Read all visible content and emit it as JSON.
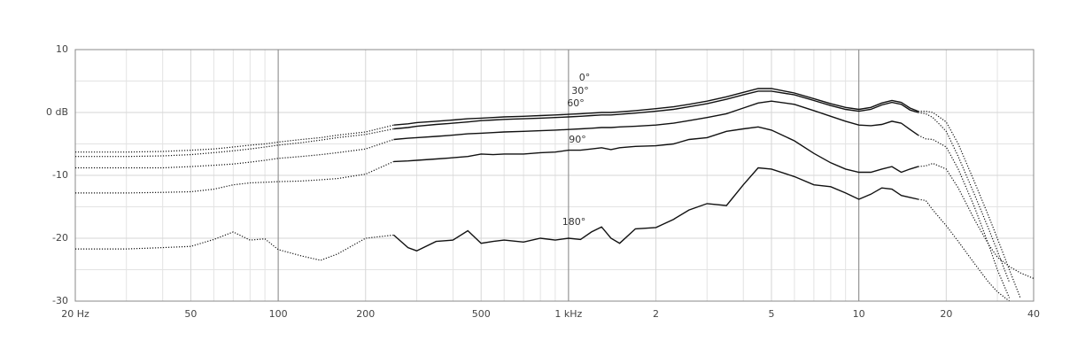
{
  "chart_data": {
    "type": "line",
    "x": [
      20,
      25,
      30,
      40,
      50,
      60,
      70,
      80,
      90,
      100,
      120,
      140,
      160,
      200,
      250,
      280,
      300,
      350,
      400,
      450,
      500,
      550,
      600,
      700,
      800,
      900,
      1000,
      1100,
      1200,
      1300,
      1400,
      1500,
      1700,
      2000,
      2300,
      2600,
      3000,
      3500,
      4000,
      4500,
      5000,
      6000,
      7000,
      8000,
      9000,
      10000,
      11000,
      12000,
      13000,
      14000,
      15000,
      16000,
      17000,
      18000,
      20000,
      22000,
      25000,
      28000,
      30000,
      33000,
      36000,
      40000
    ],
    "series": [
      {
        "name": "0°",
        "color": "#111111",
        "values": [
          -6.3,
          -6.3,
          -6.3,
          -6.2,
          -6.0,
          -5.8,
          -5.5,
          -5.2,
          -5.0,
          -4.7,
          -4.3,
          -4.0,
          -3.6,
          -3.1,
          -2.0,
          -1.8,
          -1.6,
          -1.4,
          -1.2,
          -1.0,
          -0.9,
          -0.8,
          -0.7,
          -0.6,
          -0.5,
          -0.4,
          -0.3,
          -0.2,
          -0.1,
          0,
          0,
          0.1,
          0.3,
          0.6,
          0.9,
          1.3,
          1.8,
          2.5,
          3.2,
          3.8,
          3.8,
          3.1,
          2.2,
          1.4,
          0.8,
          0.5,
          0.8,
          1.5,
          1.9,
          1.6,
          0.7,
          0.2,
          0.2,
          0,
          -1.5,
          -5,
          -11,
          -16.5,
          -20,
          -25,
          -29.5,
          null
        ]
      },
      {
        "name": "30°",
        "color": "#111111",
        "values": [
          -7.0,
          -7.0,
          -7.0,
          -6.9,
          -6.7,
          -6.4,
          -6.1,
          -5.8,
          -5.5,
          -5.2,
          -4.8,
          -4.4,
          -4.0,
          -3.5,
          -2.6,
          -2.4,
          -2.2,
          -1.9,
          -1.7,
          -1.5,
          -1.3,
          -1.2,
          -1.1,
          -1.0,
          -0.9,
          -0.8,
          -0.7,
          -0.6,
          -0.5,
          -0.4,
          -0.4,
          -0.3,
          -0.1,
          0.2,
          0.5,
          0.9,
          1.4,
          2.1,
          2.8,
          3.4,
          3.4,
          2.8,
          1.9,
          1.1,
          0.5,
          0.2,
          0.5,
          1.2,
          1.6,
          1.3,
          0.4,
          0,
          -0.2,
          -0.8,
          -3,
          -7,
          -13,
          -18.5,
          -22,
          -27,
          null,
          null
        ]
      },
      {
        "name": "60°",
        "color": "#111111",
        "values": [
          -8.8,
          -8.8,
          -8.8,
          -8.8,
          -8.6,
          -8.4,
          -8.2,
          -7.9,
          -7.6,
          -7.3,
          -7.0,
          -6.7,
          -6.4,
          -5.8,
          -4.3,
          -4.1,
          -4.0,
          -3.8,
          -3.6,
          -3.4,
          -3.3,
          -3.2,
          -3.1,
          -3.0,
          -2.9,
          -2.8,
          -2.7,
          -2.6,
          -2.5,
          -2.4,
          -2.4,
          -2.3,
          -2.2,
          -2.0,
          -1.7,
          -1.3,
          -0.8,
          -0.2,
          0.7,
          1.5,
          1.8,
          1.3,
          0.3,
          -0.6,
          -1.4,
          -2.0,
          -2.1,
          -1.9,
          -1.4,
          -1.7,
          -2.7,
          -3.6,
          -4.2,
          -4.3,
          -5.5,
          -9,
          -15,
          -21,
          -25,
          -29.5,
          null,
          null
        ]
      },
      {
        "name": "90°",
        "color": "#111111",
        "values": [
          -12.8,
          -12.8,
          -12.8,
          -12.7,
          -12.6,
          -12.2,
          -11.5,
          -11.2,
          -11.1,
          -11.0,
          -10.9,
          -10.7,
          -10.5,
          -9.8,
          -7.8,
          -7.7,
          -7.6,
          -7.4,
          -7.2,
          -7.0,
          -6.6,
          -6.7,
          -6.6,
          -6.6,
          -6.4,
          -6.3,
          -6.0,
          -6.0,
          -5.8,
          -5.6,
          -5.9,
          -5.6,
          -5.4,
          -5.3,
          -5.0,
          -4.3,
          -4.0,
          -3.0,
          -2.6,
          -2.3,
          -2.8,
          -4.5,
          -6.5,
          -8.0,
          -9.0,
          -9.5,
          -9.5,
          -9.0,
          -8.6,
          -9.5,
          -9.0,
          -8.6,
          -8.5,
          -8.1,
          -9,
          -12,
          -17,
          -21,
          -23,
          -24.5,
          -25.5,
          -26.4
        ]
      },
      {
        "name": "180°",
        "color": "#111111",
        "values": [
          -21.7,
          -21.7,
          -21.7,
          -21.5,
          -21.3,
          -20.2,
          -19.0,
          -20.3,
          -20.1,
          -21.8,
          -22.8,
          -23.5,
          -22.5,
          -20.0,
          -19.5,
          -21.5,
          -22.0,
          -20.5,
          -20.3,
          -18.8,
          -20.8,
          -20.5,
          -20.3,
          -20.6,
          -20.0,
          -20.3,
          -20.0,
          -20.2,
          -19.0,
          -18.2,
          -20.0,
          -20.8,
          -18.5,
          -18.3,
          -17.0,
          -15.5,
          -14.5,
          -14.8,
          -11.5,
          -8.8,
          -9.0,
          -10.2,
          -11.5,
          -11.8,
          -12.8,
          -13.8,
          -13.0,
          -12.0,
          -12.2,
          -13.2,
          -13.5,
          -13.8,
          -14.0,
          -15.5,
          -18,
          -20.5,
          -24,
          -27,
          -28.5,
          -30,
          null,
          null
        ]
      }
    ],
    "log_x": true,
    "measured_range": [
      250,
      16000
    ],
    "xlim": [
      20,
      40000
    ],
    "xticks": [
      {
        "value": 20,
        "label": "20 Hz"
      },
      50,
      100,
      200,
      500,
      {
        "value": 1000,
        "label": "1 kHz"
      },
      {
        "value": 2000,
        "label": "2"
      },
      {
        "value": 5000,
        "label": "5"
      },
      {
        "value": 10000,
        "label": "10"
      },
      {
        "value": 20000,
        "label": "20"
      },
      {
        "value": 40000,
        "label": "40"
      }
    ],
    "xminor": [
      30,
      40,
      60,
      70,
      80,
      90,
      300,
      400,
      600,
      700,
      800,
      900,
      3000,
      4000,
      6000,
      7000,
      8000,
      9000,
      30000
    ],
    "xmajor": [
      100,
      1000,
      10000
    ],
    "ylim": [
      -30,
      10
    ],
    "yticks": [
      10,
      {
        "value": 0,
        "label": "0 dB"
      },
      -10,
      -20,
      -30
    ],
    "yminor": [
      5,
      -5,
      -15,
      -25
    ],
    "grid": true
  }
}
